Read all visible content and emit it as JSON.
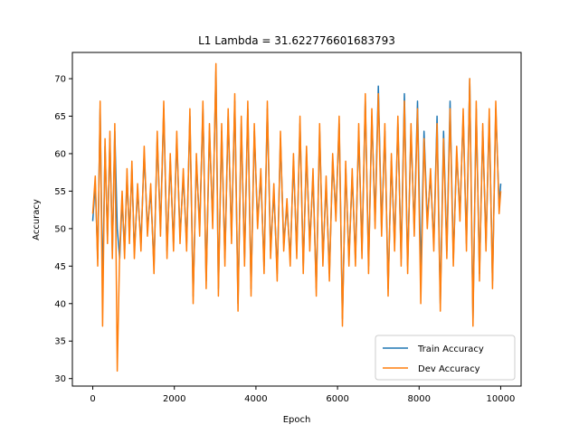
{
  "chart_data": {
    "type": "line",
    "title": "L1 Lambda = 31.622776601683793",
    "xlabel": "Epoch",
    "ylabel": "Accuracy",
    "xlim": [
      -500,
      10500
    ],
    "ylim": [
      29.0,
      73.5
    ],
    "xticks": [
      0,
      2000,
      4000,
      6000,
      8000,
      10000
    ],
    "yticks": [
      30,
      35,
      40,
      45,
      50,
      55,
      60,
      65,
      70
    ],
    "grid": false,
    "legend_position": "lower-right",
    "series": [
      {
        "name": "Train Accuracy",
        "color": "#1f77b4",
        "x": [
          0,
          60,
          120,
          180,
          240,
          300,
          360,
          420,
          480,
          540,
          600,
          660,
          720,
          780,
          840,
          900,
          960,
          1020,
          1100,
          1180,
          1260,
          1340,
          1420,
          1500,
          1580,
          1660,
          1740,
          1820,
          1900,
          1980,
          2060,
          2140,
          2220,
          2300,
          2380,
          2460,
          2540,
          2620,
          2700,
          2780,
          2860,
          2940,
          3020,
          3080,
          3160,
          3240,
          3320,
          3400,
          3480,
          3560,
          3640,
          3720,
          3800,
          3880,
          3960,
          4040,
          4120,
          4200,
          4280,
          4360,
          4440,
          4520,
          4600,
          4680,
          4760,
          4840,
          4920,
          5000,
          5080,
          5160,
          5240,
          5320,
          5400,
          5480,
          5560,
          5640,
          5720,
          5800,
          5880,
          5960,
          6040,
          6120,
          6200,
          6280,
          6360,
          6440,
          6520,
          6600,
          6680,
          6760,
          6840,
          6920,
          7000,
          7080,
          7160,
          7240,
          7320,
          7400,
          7480,
          7560,
          7640,
          7720,
          7800,
          7880,
          7960,
          8040,
          8120,
          8200,
          8280,
          8360,
          8440,
          8520,
          8600,
          8680,
          8760,
          8840,
          8920,
          9000,
          9080,
          9160,
          9240,
          9320,
          9400,
          9480,
          9560,
          9640,
          9720,
          9800,
          9880,
          9960,
          10000
        ],
        "values": [
          51,
          56,
          46,
          66,
          42,
          61,
          49,
          62,
          47,
          63,
          50,
          46,
          54,
          47,
          57,
          49,
          58,
          47,
          55,
          48,
          60,
          50,
          55,
          45,
          62,
          50,
          66,
          47,
          59,
          48,
          62,
          49,
          57,
          48,
          65,
          41,
          59,
          50,
          66,
          43,
          63,
          51,
          71,
          42,
          63,
          46,
          65,
          49,
          67,
          40,
          64,
          46,
          66,
          42,
          63,
          51,
          57,
          45,
          66,
          47,
          55,
          44,
          62,
          48,
          53,
          46,
          59,
          47,
          64,
          45,
          60,
          48,
          57,
          42,
          63,
          46,
          56,
          44,
          59,
          52,
          64,
          38,
          58,
          46,
          57,
          46,
          63,
          47,
          67,
          45,
          65,
          51,
          69,
          50,
          63,
          42,
          59,
          48,
          64,
          46,
          68,
          45,
          63,
          50,
          67,
          44,
          63,
          51,
          57,
          48,
          65,
          40,
          63,
          47,
          67,
          46,
          60,
          52,
          65,
          48,
          70,
          38,
          66,
          44,
          63,
          48,
          65,
          43,
          66,
          53,
          56
        ]
      },
      {
        "name": "Dev Accuracy",
        "color": "#ff7f0e",
        "x": [
          0,
          60,
          120,
          180,
          240,
          300,
          360,
          420,
          480,
          540,
          600,
          660,
          720,
          780,
          840,
          900,
          960,
          1020,
          1100,
          1180,
          1260,
          1340,
          1420,
          1500,
          1580,
          1660,
          1740,
          1820,
          1900,
          1980,
          2060,
          2140,
          2220,
          2300,
          2380,
          2460,
          2540,
          2620,
          2700,
          2780,
          2860,
          2940,
          3020,
          3080,
          3160,
          3240,
          3320,
          3400,
          3480,
          3560,
          3640,
          3720,
          3800,
          3880,
          3960,
          4040,
          4120,
          4200,
          4280,
          4360,
          4440,
          4520,
          4600,
          4680,
          4760,
          4840,
          4920,
          5000,
          5080,
          5160,
          5240,
          5320,
          5400,
          5480,
          5560,
          5640,
          5720,
          5800,
          5880,
          5960,
          6040,
          6120,
          6200,
          6280,
          6360,
          6440,
          6520,
          6600,
          6680,
          6760,
          6840,
          6920,
          7000,
          7080,
          7160,
          7240,
          7320,
          7400,
          7480,
          7560,
          7640,
          7720,
          7800,
          7880,
          7960,
          8040,
          8120,
          8200,
          8280,
          8360,
          8440,
          8520,
          8600,
          8680,
          8760,
          8840,
          8920,
          9000,
          9080,
          9160,
          9240,
          9320,
          9400,
          9480,
          9560,
          9640,
          9720,
          9800,
          9880,
          9960,
          10000
        ],
        "values": [
          52,
          57,
          45,
          67,
          37,
          62,
          48,
          63,
          46,
          64,
          31,
          47,
          55,
          46,
          58,
          48,
          59,
          46,
          56,
          47,
          61,
          49,
          56,
          44,
          63,
          49,
          67,
          46,
          60,
          47,
          63,
          48,
          58,
          47,
          66,
          40,
          60,
          49,
          67,
          42,
          64,
          50,
          72,
          41,
          64,
          45,
          66,
          48,
          68,
          39,
          65,
          45,
          67,
          41,
          64,
          50,
          58,
          44,
          67,
          46,
          56,
          43,
          63,
          47,
          54,
          45,
          60,
          46,
          65,
          44,
          61,
          47,
          58,
          41,
          64,
          45,
          57,
          43,
          60,
          51,
          65,
          37,
          59,
          45,
          58,
          45,
          64,
          46,
          68,
          44,
          66,
          50,
          68,
          49,
          64,
          41,
          60,
          47,
          65,
          45,
          67,
          44,
          64,
          49,
          66,
          40,
          62,
          50,
          58,
          47,
          64,
          39,
          62,
          46,
          66,
          45,
          61,
          51,
          66,
          47,
          70,
          37,
          67,
          43,
          64,
          47,
          66,
          42,
          67,
          52,
          55
        ]
      }
    ]
  }
}
